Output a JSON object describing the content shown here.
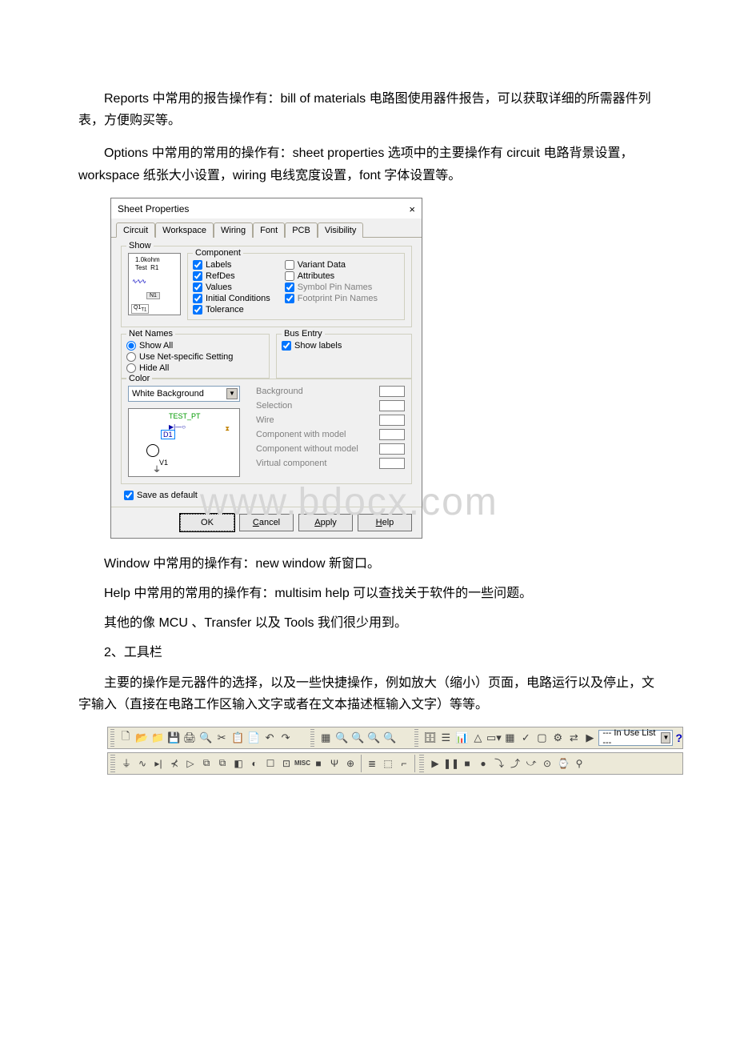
{
  "para1": "Reports 中常用的报告操作有：bill of materials 电路图使用器件报告，可以获取详细的所需器件列表，方便购买等。",
  "para2": "Options 中常用的常用的操作有：sheet properties 选项中的主要操作有 circuit 电路背景设置，workspace 纸张大小设置，wiring 电线宽度设置，font 字体设置等。",
  "dialog": {
    "title": "Sheet Properties",
    "tabs": [
      "Circuit",
      "Workspace",
      "Wiring",
      "Font",
      "PCB",
      "Visibility"
    ],
    "show": {
      "title": "Show",
      "preview": {
        "line1": "1.0kohm",
        "line2": "Test",
        "r1": "R1",
        "n1": "N1",
        "q1": "Q1"
      },
      "component": {
        "title": "Component",
        "left": [
          {
            "label": "Labels",
            "checked": true,
            "gray": false
          },
          {
            "label": "RefDes",
            "checked": true,
            "gray": false
          },
          {
            "label": "Values",
            "checked": true,
            "gray": false
          },
          {
            "label": "Initial Conditions",
            "checked": true,
            "gray": false
          },
          {
            "label": "Tolerance",
            "checked": true,
            "gray": false
          }
        ],
        "right": [
          {
            "label": "Variant Data",
            "checked": false,
            "gray": false
          },
          {
            "label": "Attributes",
            "checked": false,
            "gray": false
          },
          {
            "label": "Symbol Pin Names",
            "checked": true,
            "gray": true
          },
          {
            "label": "Footprint Pin Names",
            "checked": true,
            "gray": true
          }
        ]
      }
    },
    "netnames": {
      "title": "Net Names",
      "opts": [
        "Show All",
        "Use Net-specific Setting",
        "Hide All"
      ],
      "selected": 0
    },
    "busentry": {
      "title": "Bus Entry",
      "label": "Show labels",
      "checked": true
    },
    "color": {
      "title": "Color",
      "select": "White Background",
      "items": [
        "Background",
        "Selection",
        "Wire",
        "Component with model",
        "Component without model",
        "Virtual component"
      ],
      "preview": {
        "testpt": "TEST_PT",
        "d1": "D1",
        "v1": "V1"
      }
    },
    "savedefault": {
      "label": "Save as default",
      "checked": true
    },
    "buttons": {
      "ok": "OK",
      "cancel": "Cancel",
      "apply": "Apply",
      "help": "Help"
    }
  },
  "para3": "Window 中常用的操作有：new window 新窗口。",
  "para4": "Help 中常用的常用的操作有：multisim help 可以查找关于软件的一些问题。",
  "para5": "其他的像 MCU 、Transfer 以及 Tools 我们很少用到。",
  "para6": "2、工具栏",
  "para7": "主要的操作是元器件的选择，以及一些快捷操作，例如放大（缩小）页面，电路运行以及停止，文字输入（直接在电路工作区输入文字或者在文本描述框输入文字）等等。",
  "toolbar": {
    "inuse": "--- In Use List ---"
  },
  "watermark": "www.bdocx.com"
}
